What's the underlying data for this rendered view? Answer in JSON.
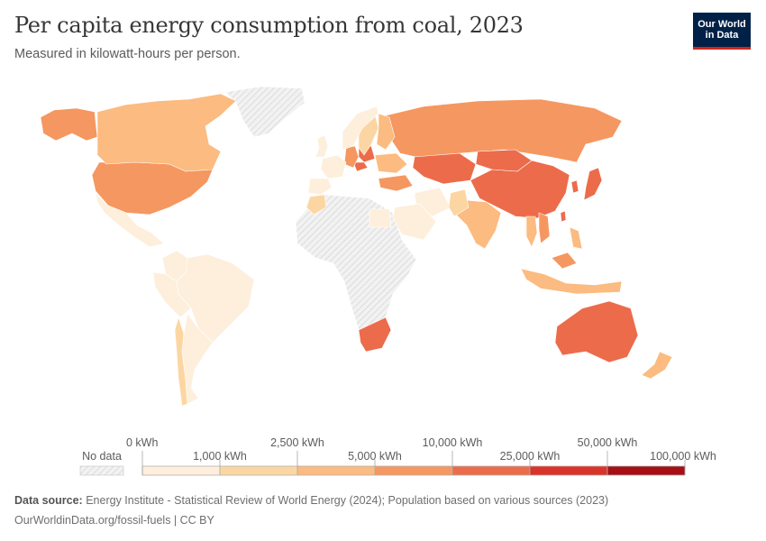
{
  "title": "Per capita energy consumption from coal, 2023",
  "subtitle": "Measured in kilowatt-hours per person.",
  "logo": {
    "line1": "Our World",
    "line2": "in Data"
  },
  "colors": {
    "no_data_fill": "#e6e6e6",
    "bins": [
      "#fdefdc",
      "#fcd6a2",
      "#fbbb81",
      "#f59760",
      "#ec6b4b",
      "#d9342a",
      "#a50f15"
    ]
  },
  "legend": {
    "no_data_label": "No data",
    "tick_labels": [
      "0 kWh",
      "1,000 kWh",
      "2,500 kWh",
      "5,000 kWh",
      "10,000 kWh",
      "25,000 kWh",
      "50,000 kWh",
      "100,000 kWh"
    ]
  },
  "countries": [
    {
      "name": "United States",
      "bin": 3
    },
    {
      "name": "Canada",
      "bin": 2
    },
    {
      "name": "Alaska",
      "bin": 3
    },
    {
      "name": "Greenland",
      "bin": -1
    },
    {
      "name": "Mexico",
      "bin": 0
    },
    {
      "name": "Brazil",
      "bin": 0
    },
    {
      "name": "Argentina",
      "bin": 0
    },
    {
      "name": "Chile",
      "bin": 1
    },
    {
      "name": "Colombia",
      "bin": 0
    },
    {
      "name": "Peru",
      "bin": 0
    },
    {
      "name": "Russia",
      "bin": 3
    },
    {
      "name": "Kazakhstan",
      "bin": 4
    },
    {
      "name": "China",
      "bin": 4
    },
    {
      "name": "Mongolia",
      "bin": 4
    },
    {
      "name": "India",
      "bin": 2
    },
    {
      "name": "Australia",
      "bin": 4
    },
    {
      "name": "South Africa",
      "bin": 4
    },
    {
      "name": "Japan",
      "bin": 4
    },
    {
      "name": "South Korea",
      "bin": 4
    },
    {
      "name": "Taiwan",
      "bin": 4
    },
    {
      "name": "Indonesia",
      "bin": 2
    },
    {
      "name": "Malaysia",
      "bin": 3
    },
    {
      "name": "Vietnam",
      "bin": 3
    },
    {
      "name": "Poland",
      "bin": 4
    },
    {
      "name": "Czechia",
      "bin": 4
    },
    {
      "name": "Germany",
      "bin": 3
    },
    {
      "name": "Finland",
      "bin": 2
    },
    {
      "name": "Sweden",
      "bin": 1
    },
    {
      "name": "Norway",
      "bin": 0
    },
    {
      "name": "France",
      "bin": 0
    },
    {
      "name": "Spain",
      "bin": 0
    },
    {
      "name": "United Kingdom",
      "bin": 0
    },
    {
      "name": "Ukraine",
      "bin": 2
    },
    {
      "name": "Turkey",
      "bin": 3
    },
    {
      "name": "Iran",
      "bin": 0
    },
    {
      "name": "Saudi Arabia",
      "bin": 0
    },
    {
      "name": "Pakistan",
      "bin": 1
    },
    {
      "name": "Egypt",
      "bin": 0
    },
    {
      "name": "Morocco",
      "bin": 1
    },
    {
      "name": "Africa (rest)",
      "bin": -1
    },
    {
      "name": "New Zealand",
      "bin": 2
    },
    {
      "name": "Philippines",
      "bin": 2
    },
    {
      "name": "Thailand",
      "bin": 2
    }
  ],
  "source_label": "Data source:",
  "source_text": "Energy Institute - Statistical Review of World Energy (2024); Population based on various sources (2023)",
  "url_text": "OurWorldinData.org/fossil-fuels | CC BY"
}
